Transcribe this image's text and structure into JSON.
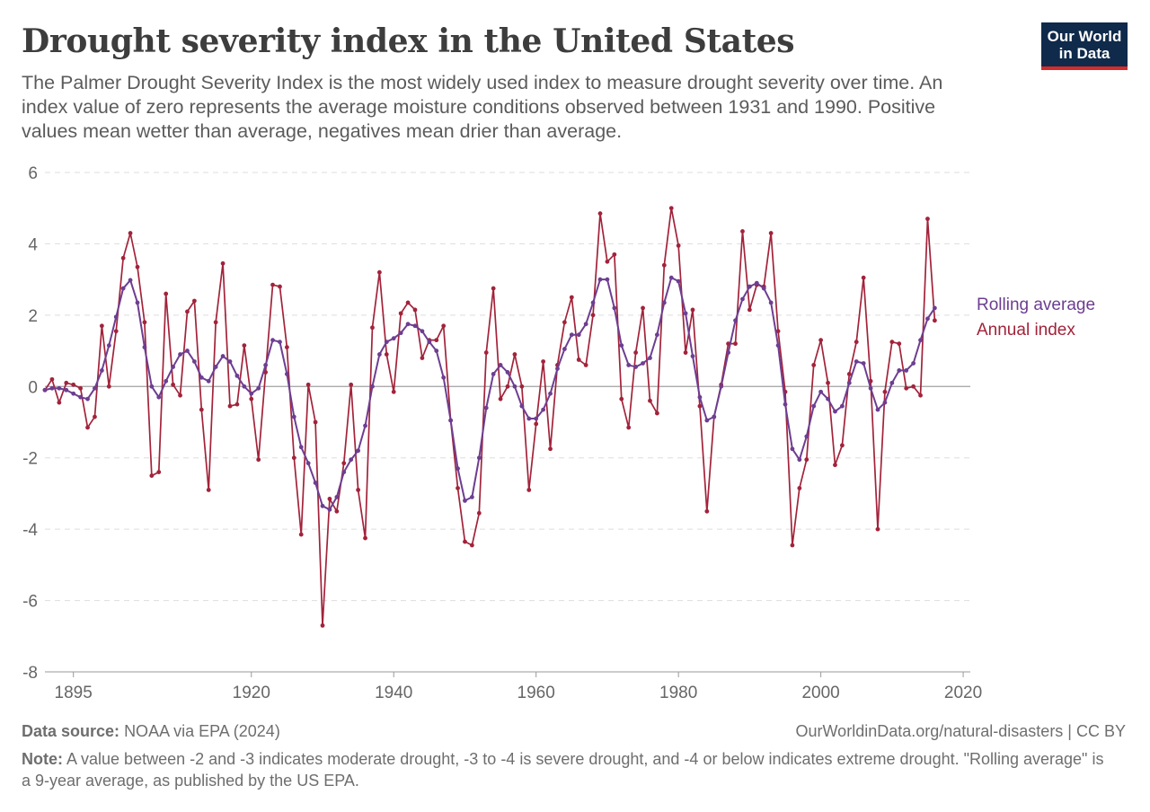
{
  "header": {
    "title": "Drought severity index in the United States",
    "subtitle": "The Palmer Drought Severity Index is the most widely used index to measure drought severity over time. An index value of zero represents the average moisture conditions observed between 1931 and 1990. Positive values mean wetter than average, negatives mean drier than average.",
    "logo_line1": "Our World",
    "logo_line2": "in Data"
  },
  "footer": {
    "source_label": "Data source:",
    "source_text": "NOAA via EPA (2024)",
    "site_text": "OurWorldinData.org/natural-disasters | CC BY",
    "note_label": "Note:",
    "note_text": "A value between -2 and -3 indicates moderate drought, -3 to -4 is severe drought, and -4 or below indicates extreme drought. \"Rolling average\" is a 9-year average, as published by the US EPA."
  },
  "colors": {
    "annual": "#a2233a",
    "rolling": "#6d3e91",
    "grid": "#dddddd",
    "zero_line": "#a0a0a0",
    "axis_text": "#666666"
  },
  "chart_data": {
    "type": "line",
    "x_start": 1891,
    "x_end": 2021,
    "xticks": [
      1895,
      1920,
      1940,
      1960,
      1980,
      2000,
      2020
    ],
    "yticks": [
      6,
      4,
      2,
      0,
      -2,
      -4,
      -6,
      -8
    ],
    "ylim": [
      -8,
      6
    ],
    "grid": "horizontal dashed",
    "legend": "right end labels",
    "series": [
      {
        "name": "Annual index",
        "color": "#a2233a",
        "values": [
          -0.1,
          0.2,
          -0.45,
          0.1,
          0.05,
          -0.05,
          -1.15,
          -0.85,
          1.7,
          0,
          1.55,
          3.6,
          4.3,
          3.35,
          1.8,
          -2.5,
          -2.4,
          2.6,
          0.05,
          -0.25,
          2.1,
          2.4,
          -0.65,
          -2.9,
          1.8,
          3.45,
          -0.55,
          -0.5,
          1.15,
          -0.35,
          -2.05,
          0.4,
          2.85,
          2.8,
          1.1,
          -2.0,
          -4.15,
          0.05,
          -1.0,
          -6.7,
          -3.15,
          -3.5,
          -2.15,
          0.05,
          -2.9,
          -4.25,
          1.65,
          3.2,
          0.9,
          -0.15,
          2.05,
          2.35,
          2.15,
          0.8,
          1.3,
          1.3,
          1.7,
          -0.95,
          -2.85,
          -4.35,
          -4.45,
          -3.55,
          0.95,
          2.75,
          -0.35,
          0.0,
          0.9,
          0.0,
          -2.9,
          -1.05,
          0.7,
          -1.75,
          0.6,
          1.8,
          2.5,
          0.75,
          0.6,
          2.0,
          4.85,
          3.5,
          3.7,
          -0.35,
          -1.15,
          0.95,
          2.2,
          -0.4,
          -0.75,
          3.4,
          5.0,
          3.95,
          0.95,
          2.15,
          -0.55,
          -3.5,
          -0.85,
          0.05,
          1.2,
          1.2,
          4.35,
          2.15,
          2.85,
          2.8,
          4.3,
          1.55,
          -0.15,
          -4.45,
          -2.85,
          -2.05,
          0.6,
          1.3,
          0.1,
          -2.2,
          -1.65,
          0.35,
          1.25,
          3.05,
          0.15,
          -4.0,
          -0.15,
          1.25,
          1.2,
          -0.05,
          0.0,
          -0.25,
          4.7,
          1.85
        ]
      },
      {
        "name": "Rolling average",
        "color": "#6d3e91",
        "values": [
          -0.1,
          -0.05,
          -0.05,
          -0.1,
          -0.2,
          -0.3,
          -0.35,
          -0.05,
          0.45,
          1.15,
          1.95,
          2.75,
          2.98,
          2.35,
          1.1,
          0.0,
          -0.3,
          0.15,
          0.55,
          0.9,
          1.0,
          0.7,
          0.25,
          0.15,
          0.55,
          0.85,
          0.7,
          0.3,
          0.0,
          -0.2,
          -0.05,
          0.6,
          1.3,
          1.25,
          0.35,
          -0.85,
          -1.7,
          -2.15,
          -2.7,
          -3.35,
          -3.45,
          -3.1,
          -2.4,
          -2.05,
          -1.8,
          -1.1,
          0.0,
          0.9,
          1.25,
          1.35,
          1.5,
          1.75,
          1.7,
          1.55,
          1.25,
          1.0,
          0.25,
          -0.95,
          -2.3,
          -3.2,
          -3.1,
          -2.0,
          -0.6,
          0.35,
          0.6,
          0.4,
          0.0,
          -0.55,
          -0.9,
          -0.9,
          -0.65,
          -0.2,
          0.5,
          1.05,
          1.45,
          1.45,
          1.75,
          2.35,
          3.0,
          3.0,
          2.2,
          1.15,
          0.6,
          0.55,
          0.65,
          0.8,
          1.45,
          2.35,
          3.05,
          2.95,
          2.05,
          0.85,
          -0.3,
          -0.95,
          -0.85,
          0.0,
          0.95,
          1.85,
          2.45,
          2.8,
          2.9,
          2.75,
          2.35,
          1.15,
          -0.5,
          -1.75,
          -2.05,
          -1.4,
          -0.55,
          -0.15,
          -0.35,
          -0.7,
          -0.55,
          0.1,
          0.7,
          0.65,
          -0.05,
          -0.65,
          -0.45,
          0.1,
          0.45,
          0.45,
          0.65,
          1.3,
          1.9,
          2.2
        ]
      }
    ]
  }
}
